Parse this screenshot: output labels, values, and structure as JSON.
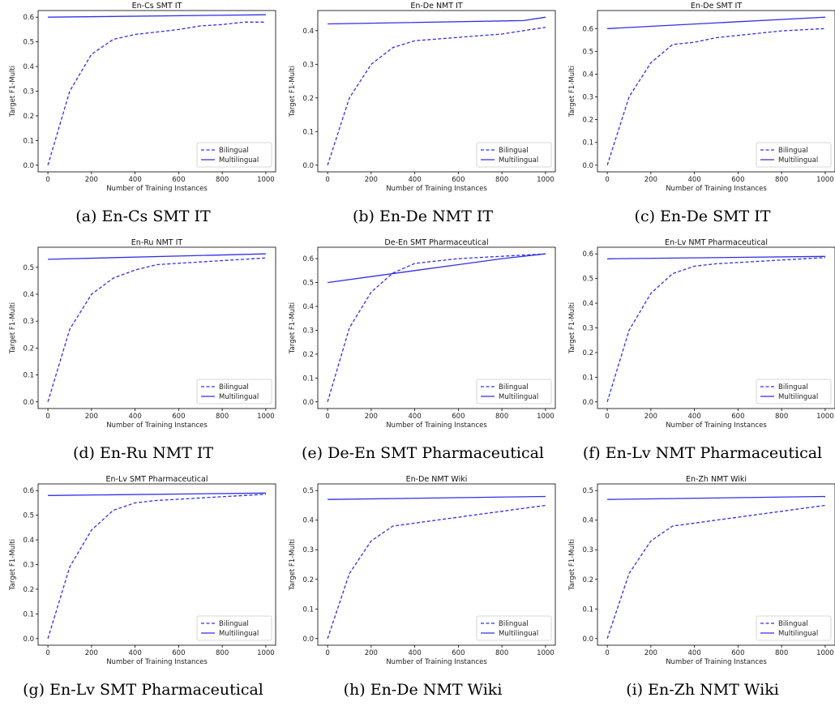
{
  "colors": {
    "series": "#3030e8",
    "axis": "#000000",
    "legend_border": "#cccccc"
  },
  "chart_data": [
    {
      "type": "line",
      "caption": "(a) En-Cs SMT IT",
      "title": "En-Cs SMT IT",
      "xlabel": "Number of Training Instances",
      "ylabel": "Target F1-Multi",
      "xlim": [
        0,
        1000
      ],
      "ylim": [
        0,
        0.6
      ],
      "xticks": [
        0,
        200,
        400,
        600,
        800,
        1000
      ],
      "yticks": [
        0.0,
        0.1,
        0.2,
        0.3,
        0.4,
        0.5,
        0.6
      ],
      "legend_position": "lower-right",
      "series": [
        {
          "name": "Bilingual",
          "style": "dashed",
          "x": [
            0,
            100,
            200,
            300,
            400,
            500,
            600,
            700,
            800,
            900,
            1000
          ],
          "y": [
            0.0,
            0.3,
            0.45,
            0.51,
            0.53,
            0.54,
            0.55,
            0.565,
            0.57,
            0.58,
            0.58
          ]
        },
        {
          "name": "Multilingual",
          "style": "solid",
          "x": [
            0,
            1000
          ],
          "y": [
            0.6,
            0.61
          ]
        }
      ]
    },
    {
      "type": "line",
      "caption": "(b) En-De NMT IT",
      "title": "En-De NMT IT",
      "xlabel": "Number of Training Instances",
      "ylabel": "Target F1-Multi",
      "xlim": [
        0,
        1000
      ],
      "ylim": [
        0,
        0.44
      ],
      "xticks": [
        0,
        200,
        400,
        600,
        800,
        1000
      ],
      "yticks": [
        0.0,
        0.1,
        0.2,
        0.3,
        0.4
      ],
      "legend_position": "lower-right",
      "series": [
        {
          "name": "Bilingual",
          "style": "dashed",
          "x": [
            0,
            100,
            200,
            300,
            400,
            500,
            600,
            700,
            800,
            900,
            1000
          ],
          "y": [
            0.0,
            0.2,
            0.3,
            0.35,
            0.37,
            0.375,
            0.38,
            0.385,
            0.39,
            0.4,
            0.41
          ]
        },
        {
          "name": "Multilingual",
          "style": "solid",
          "x": [
            0,
            900,
            1000
          ],
          "y": [
            0.42,
            0.43,
            0.44
          ]
        }
      ]
    },
    {
      "type": "line",
      "caption": "(c) En-De SMT IT",
      "title": "En-De SMT IT",
      "xlabel": "Number of Training Instances",
      "ylabel": "Target F1-Multi",
      "xlim": [
        0,
        1000
      ],
      "ylim": [
        0,
        0.65
      ],
      "xticks": [
        0,
        200,
        400,
        600,
        800,
        1000
      ],
      "yticks": [
        0.0,
        0.1,
        0.2,
        0.3,
        0.4,
        0.5,
        0.6
      ],
      "legend_position": "lower-right",
      "series": [
        {
          "name": "Bilingual",
          "style": "dashed",
          "x": [
            0,
            100,
            200,
            300,
            400,
            500,
            600,
            700,
            800,
            900,
            1000
          ],
          "y": [
            0.0,
            0.3,
            0.45,
            0.53,
            0.54,
            0.56,
            0.57,
            0.58,
            0.59,
            0.595,
            0.6
          ]
        },
        {
          "name": "Multilingual",
          "style": "solid",
          "x": [
            0,
            1000
          ],
          "y": [
            0.6,
            0.65
          ]
        }
      ]
    },
    {
      "type": "line",
      "caption": "(d) En-Ru NMT IT",
      "title": "En-Ru NMT IT",
      "xlabel": "Number of Training Instances",
      "ylabel": "Target F1-Multi",
      "xlim": [
        0,
        1000
      ],
      "ylim": [
        0,
        0.55
      ],
      "xticks": [
        0,
        200,
        400,
        600,
        800,
        1000
      ],
      "yticks": [
        0.0,
        0.1,
        0.2,
        0.3,
        0.4,
        0.5
      ],
      "legend_position": "lower-right",
      "series": [
        {
          "name": "Bilingual",
          "style": "dashed",
          "x": [
            0,
            100,
            200,
            300,
            400,
            500,
            600,
            700,
            800,
            900,
            1000
          ],
          "y": [
            0.0,
            0.27,
            0.4,
            0.46,
            0.49,
            0.51,
            0.515,
            0.52,
            0.525,
            0.53,
            0.535
          ]
        },
        {
          "name": "Multilingual",
          "style": "solid",
          "x": [
            0,
            1000
          ],
          "y": [
            0.53,
            0.55
          ]
        }
      ]
    },
    {
      "type": "line",
      "caption": "(e) De-En SMT Pharmaceutical",
      "title": "De-En SMT Pharmaceutical",
      "xlabel": "Number of Training Instances",
      "ylabel": "Target F1-Multi",
      "xlim": [
        0,
        1000
      ],
      "ylim": [
        0,
        0.62
      ],
      "xticks": [
        0,
        200,
        400,
        600,
        800,
        1000
      ],
      "yticks": [
        0.0,
        0.1,
        0.2,
        0.3,
        0.4,
        0.5,
        0.6
      ],
      "legend_position": "lower-right",
      "series": [
        {
          "name": "Bilingual",
          "style": "dashed",
          "x": [
            0,
            100,
            200,
            300,
            400,
            500,
            600,
            700,
            800,
            900,
            1000
          ],
          "y": [
            0.0,
            0.31,
            0.46,
            0.54,
            0.58,
            0.59,
            0.6,
            0.605,
            0.61,
            0.615,
            0.62
          ]
        },
        {
          "name": "Multilingual",
          "style": "solid",
          "x": [
            0,
            200,
            400,
            600,
            800,
            1000
          ],
          "y": [
            0.5,
            0.525,
            0.55,
            0.575,
            0.6,
            0.62
          ]
        }
      ]
    },
    {
      "type": "line",
      "caption": "(f) En-Lv NMT Pharmaceutical",
      "title": "En-Lv NMT Pharmaceutical",
      "xlabel": "Number of Training Instances",
      "ylabel": "Target F1-Multi",
      "xlim": [
        0,
        1000
      ],
      "ylim": [
        0,
        0.6
      ],
      "xticks": [
        0,
        200,
        400,
        600,
        800,
        1000
      ],
      "yticks": [
        0.0,
        0.1,
        0.2,
        0.3,
        0.4,
        0.5,
        0.6
      ],
      "legend_position": "lower-right",
      "series": [
        {
          "name": "Bilingual",
          "style": "dashed",
          "x": [
            0,
            100,
            200,
            300,
            400,
            500,
            600,
            700,
            800,
            900,
            1000
          ],
          "y": [
            0.0,
            0.29,
            0.44,
            0.52,
            0.55,
            0.56,
            0.565,
            0.57,
            0.575,
            0.58,
            0.585
          ]
        },
        {
          "name": "Multilingual",
          "style": "solid",
          "x": [
            0,
            1000
          ],
          "y": [
            0.58,
            0.59
          ]
        }
      ]
    },
    {
      "type": "line",
      "caption": "(g) En-Lv SMT Pharmaceutical",
      "title": "En-Lv SMT Pharmaceutical",
      "xlabel": "Number of Training Instances",
      "ylabel": "Target F1-Multi",
      "xlim": [
        0,
        1000
      ],
      "ylim": [
        0,
        0.6
      ],
      "xticks": [
        0,
        200,
        400,
        600,
        800,
        1000
      ],
      "yticks": [
        0.0,
        0.1,
        0.2,
        0.3,
        0.4,
        0.5,
        0.6
      ],
      "legend_position": "lower-right",
      "series": [
        {
          "name": "Bilingual",
          "style": "dashed",
          "x": [
            0,
            100,
            200,
            300,
            400,
            500,
            600,
            700,
            800,
            900,
            1000
          ],
          "y": [
            0.0,
            0.29,
            0.44,
            0.52,
            0.55,
            0.56,
            0.565,
            0.57,
            0.575,
            0.58,
            0.585
          ]
        },
        {
          "name": "Multilingual",
          "style": "solid",
          "x": [
            0,
            1000
          ],
          "y": [
            0.58,
            0.59
          ]
        }
      ]
    },
    {
      "type": "line",
      "caption": "(h) En-De NMT Wiki",
      "title": "En-De NMT Wiki",
      "xlabel": "Number of Training Instances",
      "ylabel": "Target F1-Multi",
      "xlim": [
        0,
        1000
      ],
      "ylim": [
        0,
        0.5
      ],
      "xticks": [
        0,
        200,
        400,
        600,
        800,
        1000
      ],
      "yticks": [
        0.0,
        0.1,
        0.2,
        0.3,
        0.4,
        0.5
      ],
      "legend_position": "lower-right",
      "series": [
        {
          "name": "Bilingual",
          "style": "dashed",
          "x": [
            0,
            100,
            200,
            300,
            400,
            500,
            600,
            700,
            800,
            900,
            1000
          ],
          "y": [
            0.0,
            0.22,
            0.33,
            0.38,
            0.39,
            0.4,
            0.41,
            0.42,
            0.43,
            0.44,
            0.45
          ]
        },
        {
          "name": "Multilingual",
          "style": "solid",
          "x": [
            0,
            1000
          ],
          "y": [
            0.47,
            0.48
          ]
        }
      ]
    },
    {
      "type": "line",
      "caption": "(i) En-Zh NMT Wiki",
      "title": "En-Zh NMT Wiki",
      "xlabel": "Number of Training Instances",
      "ylabel": "Target F1-Multi",
      "xlim": [
        0,
        1000
      ],
      "ylim": [
        0,
        0.5
      ],
      "xticks": [
        0,
        200,
        400,
        600,
        800,
        1000
      ],
      "yticks": [
        0.0,
        0.1,
        0.2,
        0.3,
        0.4,
        0.5
      ],
      "legend_position": "lower-right",
      "series": [
        {
          "name": "Bilingual",
          "style": "dashed",
          "x": [
            0,
            100,
            200,
            300,
            400,
            500,
            600,
            700,
            800,
            900,
            1000
          ],
          "y": [
            0.0,
            0.22,
            0.33,
            0.38,
            0.39,
            0.4,
            0.41,
            0.42,
            0.43,
            0.44,
            0.45
          ]
        },
        {
          "name": "Multilingual",
          "style": "solid",
          "x": [
            0,
            1000
          ],
          "y": [
            0.47,
            0.48
          ]
        }
      ]
    }
  ]
}
